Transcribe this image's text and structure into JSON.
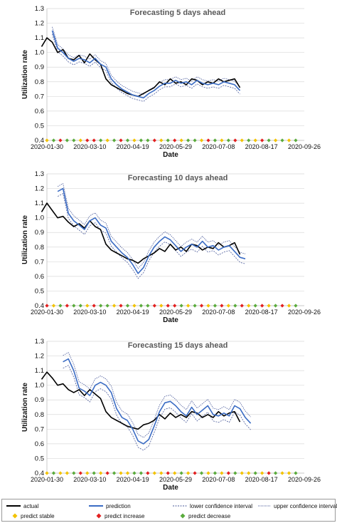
{
  "chart_data": [
    {
      "type": "line",
      "title": "Forecasting 5 days ahead",
      "xlabel": "Date",
      "ylabel": "Utilization rate",
      "x_ticks": [
        "2020-01-30",
        "2020-03-10",
        "2020-04-19",
        "2020-05-29",
        "2020-07-08",
        "2020-08-17",
        "2020-09-26"
      ],
      "y_ticks": [
        "0.4",
        "0.5",
        "0.6",
        "0.7",
        "0.8",
        "0.9",
        "1.0",
        "1.1",
        "1.2",
        "1.3"
      ],
      "ylim": [
        0.4,
        1.3
      ],
      "grid": "horizontal",
      "series": [
        {
          "name": "actual",
          "color": "#000000",
          "start": "2020-01-25",
          "step_days": 5,
          "values": [
            1.04,
            1.1,
            1.07,
            1.0,
            1.02,
            0.96,
            0.95,
            0.98,
            0.93,
            0.99,
            0.95,
            0.92,
            0.82,
            0.78,
            0.76,
            0.74,
            0.72,
            0.71,
            0.7,
            0.72,
            0.74,
            0.76,
            0.8,
            0.78,
            0.82,
            0.79,
            0.8,
            0.78,
            0.82,
            0.81,
            0.78,
            0.8,
            0.79,
            0.82,
            0.8,
            0.81,
            0.82,
            0.76
          ]
        },
        {
          "name": "prediction",
          "color": "#3b6cc4",
          "start": "2020-02-04",
          "step_days": 5,
          "values": [
            1.15,
            1.03,
            1.0,
            0.96,
            0.94,
            0.96,
            0.95,
            0.93,
            0.96,
            0.92,
            0.9,
            0.82,
            0.78,
            0.75,
            0.73,
            0.71,
            0.7,
            0.69,
            0.72,
            0.74,
            0.77,
            0.79,
            0.79,
            0.81,
            0.79,
            0.8,
            0.78,
            0.81,
            0.79,
            0.78,
            0.79,
            0.78,
            0.8,
            0.79,
            0.78,
            0.74
          ]
        }
      ],
      "signals": [
        "predict stable",
        "predict decrease",
        "predict increase",
        "predict decrease",
        "predict decrease",
        "predict stable",
        "predict increase",
        "predict increase",
        "predict decrease",
        "predict stable",
        "predict decrease",
        "predict increase",
        "predict decrease",
        "predict stable",
        "predict decrease",
        "predict decrease",
        "predict increase",
        "predict stable",
        "predict decrease",
        "predict increase",
        "predict stable",
        "predict decrease",
        "predict decrease",
        "predict stable",
        "predict increase",
        "predict decrease",
        "predict stable",
        "predict decrease",
        "predict increase",
        "predict stable",
        "predict decrease",
        "predict stable",
        "predict increase",
        "predict decrease",
        "predict stable",
        "predict decrease",
        "predict stable",
        "predict decrease"
      ]
    },
    {
      "type": "line",
      "title": "Forecasting 10 days ahead",
      "xlabel": "Date",
      "ylabel": "Utilization rate",
      "x_ticks": [
        "2020-01-30",
        "2020-03-10",
        "2020-04-19",
        "2020-05-29",
        "2020-07-08",
        "2020-08-17",
        "2020-09-26"
      ],
      "y_ticks": [
        "0.4",
        "0.5",
        "0.6",
        "0.7",
        "0.8",
        "0.9",
        "1.0",
        "1.1",
        "1.2",
        "1.3"
      ],
      "ylim": [
        0.4,
        1.3
      ],
      "grid": "horizontal",
      "series": [
        {
          "name": "actual",
          "color": "#000000",
          "start": "2020-01-25",
          "step_days": 5,
          "values": [
            1.04,
            1.1,
            1.05,
            1.0,
            1.01,
            0.97,
            0.94,
            0.96,
            0.93,
            0.98,
            0.94,
            0.92,
            0.82,
            0.78,
            0.76,
            0.74,
            0.72,
            0.71,
            0.69,
            0.72,
            0.74,
            0.76,
            0.79,
            0.77,
            0.82,
            0.78,
            0.8,
            0.77,
            0.82,
            0.81,
            0.78,
            0.8,
            0.79,
            0.83,
            0.8,
            0.81,
            0.83,
            0.75
          ]
        },
        {
          "name": "prediction",
          "color": "#3b6cc4",
          "start": "2020-02-09",
          "step_days": 5,
          "values": [
            1.18,
            1.2,
            1.03,
            0.98,
            0.95,
            0.92,
            0.98,
            1.0,
            0.95,
            0.93,
            0.84,
            0.8,
            0.76,
            0.73,
            0.68,
            0.62,
            0.66,
            0.74,
            0.8,
            0.84,
            0.87,
            0.85,
            0.81,
            0.77,
            0.8,
            0.82,
            0.8,
            0.84,
            0.8,
            0.81,
            0.78,
            0.8,
            0.81,
            0.77,
            0.73,
            0.72
          ]
        }
      ],
      "signals": [
        "predict increase",
        "predict stable",
        "predict decrease",
        "predict increase",
        "predict decrease",
        "predict decrease",
        "predict stable",
        "predict increase",
        "predict decrease",
        "predict decrease",
        "predict stable",
        "predict increase",
        "predict decrease",
        "predict stable",
        "predict decrease",
        "predict decrease",
        "predict increase",
        "predict stable",
        "predict increase",
        "predict increase",
        "predict decrease",
        "predict stable",
        "predict decrease",
        "predict increase",
        "predict stable",
        "predict decrease",
        "predict increase",
        "predict stable",
        "predict decrease",
        "predict increase",
        "predict stable",
        "predict decrease",
        "predict increase",
        "predict stable",
        "predict decrease",
        "predict increase",
        "predict stable",
        "predict decrease"
      ]
    },
    {
      "type": "line",
      "title": "Forecasting 15 days ahead",
      "xlabel": "Date",
      "ylabel": "Utilization rate",
      "x_ticks": [
        "2020-01-30",
        "2020-03-10",
        "2020-04-19",
        "2020-05-29",
        "2020-07-08",
        "2020-08-17",
        "2020-09-26"
      ],
      "y_ticks": [
        "0.4",
        "0.5",
        "0.6",
        "0.7",
        "0.8",
        "0.9",
        "1.0",
        "1.1",
        "1.2",
        "1.3"
      ],
      "ylim": [
        0.4,
        1.3
      ],
      "grid": "horizontal",
      "series": [
        {
          "name": "actual",
          "color": "#000000",
          "start": "2020-01-25",
          "step_days": 5,
          "values": [
            1.04,
            1.09,
            1.05,
            1.0,
            1.01,
            0.97,
            0.95,
            0.97,
            0.93,
            0.97,
            0.94,
            0.91,
            0.82,
            0.78,
            0.76,
            0.74,
            0.72,
            0.71,
            0.7,
            0.73,
            0.74,
            0.76,
            0.8,
            0.77,
            0.81,
            0.78,
            0.8,
            0.78,
            0.82,
            0.81,
            0.78,
            0.8,
            0.78,
            0.82,
            0.79,
            0.81,
            0.82,
            0.75
          ]
        },
        {
          "name": "prediction",
          "color": "#3b6cc4",
          "start": "2020-02-14",
          "step_days": 5,
          "values": [
            1.16,
            1.18,
            1.1,
            0.98,
            0.96,
            0.93,
            1.0,
            1.02,
            1.0,
            0.95,
            0.84,
            0.78,
            0.76,
            0.7,
            0.62,
            0.6,
            0.63,
            0.72,
            0.82,
            0.88,
            0.89,
            0.86,
            0.82,
            0.79,
            0.85,
            0.8,
            0.83,
            0.86,
            0.8,
            0.79,
            0.81,
            0.79,
            0.86,
            0.84,
            0.78,
            0.74
          ]
        }
      ],
      "signals": [
        "predict stable",
        "predict decrease",
        "predict stable",
        "predict stable",
        "predict decrease",
        "predict increase",
        "predict stable",
        "predict decrease",
        "predict stable",
        "predict increase",
        "predict decrease",
        "predict stable",
        "predict stable",
        "predict decrease",
        "predict decrease",
        "predict increase",
        "predict stable",
        "predict stable",
        "predict increase",
        "predict stable",
        "predict decrease",
        "predict stable",
        "predict increase",
        "predict decrease",
        "predict stable",
        "predict decrease",
        "predict stable",
        "predict increase",
        "predict decrease",
        "predict stable",
        "predict stable",
        "predict decrease",
        "predict stable",
        "predict increase",
        "predict decrease",
        "predict stable",
        "predict stable",
        "predict decrease"
      ]
    }
  ],
  "legend": {
    "actual": "actual",
    "prediction": "prediction",
    "lower_ci": "lower confidence interval",
    "upper_ci": "upper confidence interval",
    "predict_stable": "predict stable",
    "predict_increase": "predict increase",
    "predict_decrease": "predict decrease"
  },
  "colors": {
    "actual": "#000000",
    "prediction": "#3b6cc4",
    "confidence_interval": "#4a5a9a",
    "predict_stable": "#f2c200",
    "predict_increase": "#e32020",
    "predict_decrease": "#5aab3c",
    "gridline": "#d9d9d9"
  }
}
